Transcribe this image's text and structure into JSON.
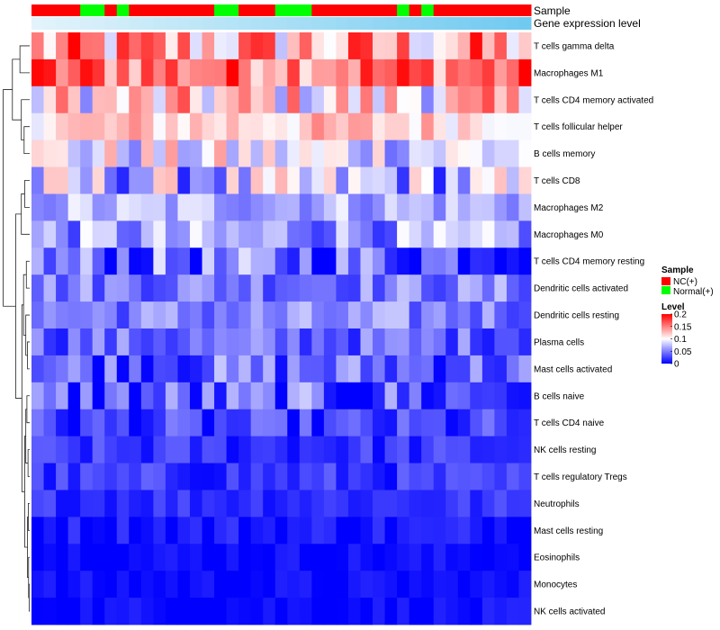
{
  "chart_data": {
    "type": "heatmap",
    "annotations": [
      {
        "name": "Sample"
      },
      {
        "name": "Gene expression level"
      }
    ],
    "rows": [
      "T cells gamma delta",
      "Macrophages M1",
      "T cells CD4 memory activated",
      "T cells follicular helper",
      "B cells memory",
      "T cells CD8",
      "Macrophages M2",
      "Macrophages M0",
      "T cells CD4 memory resting",
      "Dendritic cells activated",
      "Dendritic cells resting",
      "Plasma cells",
      "Mast cells activated",
      "B cells naive",
      "T cells CD4 naive",
      "NK cells resting",
      "T cells regulatory  Tregs",
      "Neutrophils",
      "Mast cells resting",
      "Eosinophils",
      "Monocytes",
      "NK cells activated"
    ],
    "n_columns": 41,
    "sample_groups": [
      0,
      0,
      0,
      0,
      1,
      1,
      0,
      1,
      0,
      0,
      0,
      0,
      0,
      0,
      0,
      1,
      1,
      0,
      0,
      0,
      1,
      1,
      1,
      0,
      0,
      0,
      0,
      0,
      0,
      0,
      1,
      0,
      1,
      0,
      0,
      0,
      0,
      0,
      0,
      0,
      0
    ],
    "expression_level": [
      0.02,
      0.04,
      0.06,
      0.08,
      0.1,
      0.12,
      0.14,
      0.16,
      0.18,
      0.2,
      0.22,
      0.24,
      0.26,
      0.28,
      0.3,
      0.32,
      0.34,
      0.36,
      0.38,
      0.4,
      0.42,
      0.44,
      0.46,
      0.48,
      0.5,
      0.52,
      0.54,
      0.56,
      0.58,
      0.6,
      0.62,
      0.64,
      0.66,
      0.68,
      0.7,
      0.72,
      0.74,
      0.76,
      0.78,
      0.8,
      0.82
    ],
    "row_base": [
      0.13,
      0.16,
      0.11,
      0.12,
      0.09,
      0.07,
      0.07,
      0.06,
      0.04,
      0.05,
      0.05,
      0.04,
      0.04,
      0.03,
      0.02,
      0.02,
      0.02,
      0.02,
      0.01,
      0.005,
      0.004,
      0.005
    ],
    "row_spread": [
      0.07,
      0.05,
      0.06,
      0.03,
      0.05,
      0.06,
      0.03,
      0.04,
      0.05,
      0.03,
      0.03,
      0.03,
      0.04,
      0.05,
      0.03,
      0.02,
      0.02,
      0.015,
      0.015,
      0.01,
      0.01,
      0.01
    ],
    "legend": {
      "sample_title": "Sample",
      "sample_entries": [
        {
          "label": "NC(+)",
          "color": "#ff0000"
        },
        {
          "label": "Normal(+)",
          "color": "#00ff00"
        }
      ],
      "level_title": "Level",
      "level_ticks": [
        0,
        0.05,
        0.1,
        0.15,
        0.2
      ],
      "level_tick_labels": [
        "0",
        "0.05",
        "0.1",
        "0.15",
        "0.2"
      ]
    },
    "colorscale": {
      "low": "#0000ff",
      "mid": "#ffffff",
      "high": "#ff0000",
      "min": 0,
      "mid_value": 0.1,
      "max": 0.2
    },
    "annotation_colors": {
      "expr_low": "#e6f4fb",
      "expr_high": "#56c1ee"
    }
  }
}
